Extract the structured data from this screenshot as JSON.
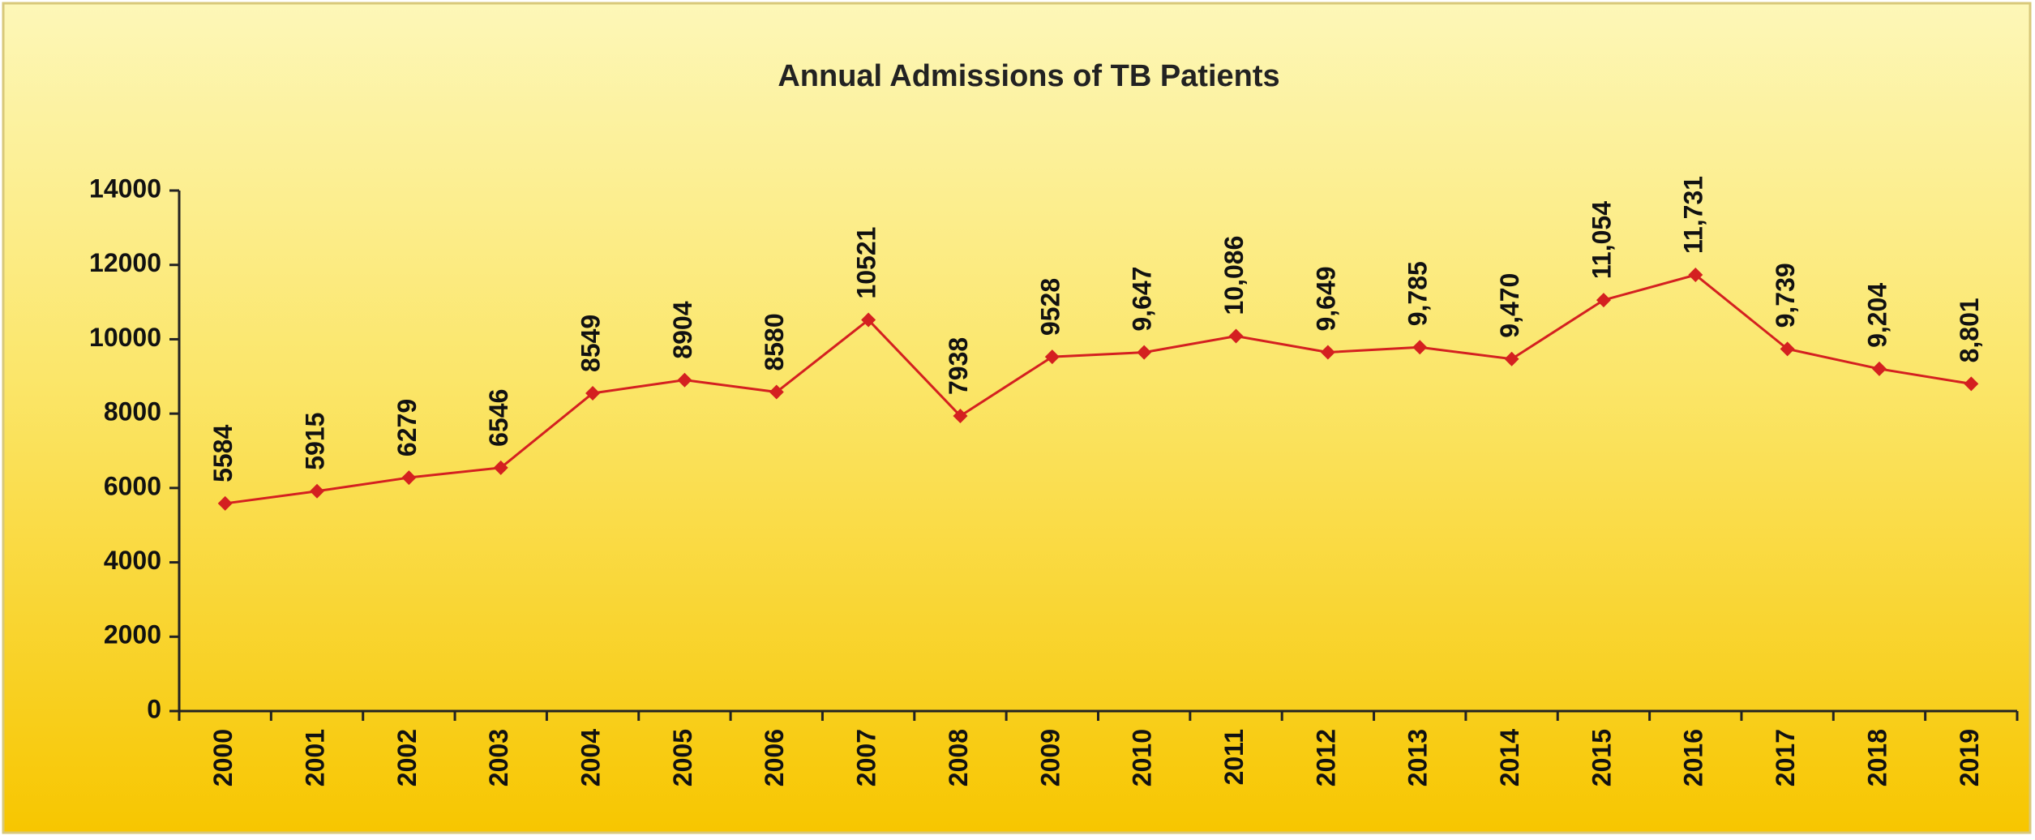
{
  "chart_data": {
    "type": "line",
    "title": "Annual Admissions of TB Patients",
    "categories": [
      "2000",
      "2001",
      "2002",
      "2003",
      "2004",
      "2005",
      "2006",
      "2007",
      "2008",
      "2009",
      "2010",
      "2011",
      "2012",
      "2013",
      "2014",
      "2015",
      "2016",
      "2017",
      "2018",
      "2019"
    ],
    "values": [
      5584,
      5915,
      6279,
      6546,
      8549,
      8904,
      8580,
      10521,
      7938,
      9528,
      9647,
      10086,
      9649,
      9785,
      9470,
      11054,
      11731,
      9739,
      9204,
      8801
    ],
    "value_labels": [
      "5584",
      "5915",
      "6279",
      "6546",
      "8549",
      "8904",
      "8580",
      "10521",
      "7938",
      "9528",
      "9,647",
      "10,086",
      "9,649",
      "9,785",
      "9,470",
      "11,054",
      "11,731",
      "9,739",
      "9,204",
      "8,801"
    ],
    "color": "#d42020",
    "ylim": [
      0,
      14000
    ],
    "yticks": [
      0,
      2000,
      4000,
      6000,
      8000,
      10000,
      12000,
      14000
    ],
    "grid": false
  }
}
